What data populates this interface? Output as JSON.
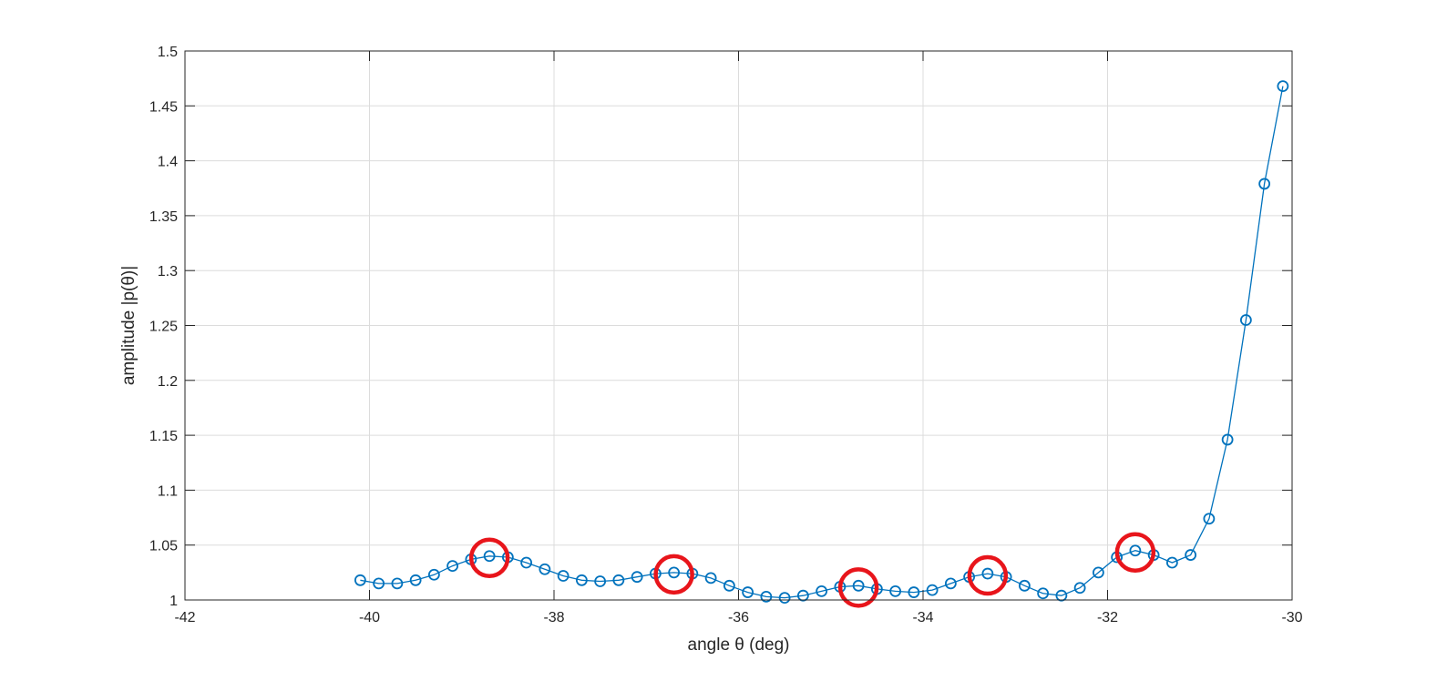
{
  "chart_data": {
    "type": "line",
    "xlabel": "angle θ (deg)",
    "ylabel": "amplitude |p(θ)|",
    "xlim": [
      -42,
      -30
    ],
    "ylim": [
      1,
      1.5
    ],
    "xticks": [
      -42,
      -40,
      -38,
      -36,
      -34,
      -32,
      -30
    ],
    "yticks": [
      1,
      1.05,
      1.1,
      1.15,
      1.2,
      1.25,
      1.3,
      1.35,
      1.4,
      1.45,
      1.5
    ],
    "xtick_labels": [
      "-42",
      "-40",
      "-38",
      "-36",
      "-34",
      "-32",
      "-30"
    ],
    "ytick_labels": [
      "1",
      "1.05",
      "1.1",
      "1.15",
      "1.2",
      "1.25",
      "1.3",
      "1.35",
      "1.4",
      "1.45",
      "1.5"
    ],
    "grid": true,
    "series": [
      {
        "color": "#0072bd",
        "marker": "circle",
        "x": [
          -40.1,
          -39.9,
          -39.7,
          -39.5,
          -39.3,
          -39.1,
          -38.9,
          -38.7,
          -38.5,
          -38.3,
          -38.1,
          -37.9,
          -37.7,
          -37.5,
          -37.3,
          -37.1,
          -36.9,
          -36.7,
          -36.5,
          -36.3,
          -36.1,
          -35.9,
          -35.7,
          -35.5,
          -35.3,
          -35.1,
          -34.9,
          -34.7,
          -34.5,
          -34.3,
          -34.1,
          -33.9,
          -33.7,
          -33.5,
          -33.3,
          -33.1,
          -32.9,
          -32.7,
          -32.5,
          -32.3,
          -32.1,
          -31.9,
          -31.7,
          -31.5,
          -31.3,
          -31.1,
          -30.9,
          -30.7,
          -30.5,
          -30.3,
          -30.1
        ],
        "y": [
          1.018,
          1.015,
          1.015,
          1.018,
          1.023,
          1.031,
          1.037,
          1.04,
          1.039,
          1.034,
          1.028,
          1.022,
          1.018,
          1.017,
          1.018,
          1.021,
          1.024,
          1.025,
          1.024,
          1.02,
          1.013,
          1.007,
          1.003,
          1.002,
          1.004,
          1.008,
          1.012,
          1.013,
          1.01,
          1.008,
          1.007,
          1.009,
          1.015,
          1.021,
          1.024,
          1.021,
          1.013,
          1.006,
          1.004,
          1.011,
          1.025,
          1.039,
          1.045,
          1.041,
          1.034,
          1.041,
          1.074,
          1.146,
          1.255,
          1.379,
          1.468
        ]
      }
    ],
    "highlighted_points": [
      {
        "x": -38.7,
        "y": 1.04,
        "color": "#e8151b"
      },
      {
        "x": -36.7,
        "y": 1.025,
        "color": "#e8151b"
      },
      {
        "x": -34.7,
        "y": 1.013,
        "color": "#e8151b"
      },
      {
        "x": -33.3,
        "y": 1.024,
        "color": "#e8151b"
      },
      {
        "x": -31.7,
        "y": 1.045,
        "color": "#e8151b"
      }
    ]
  }
}
